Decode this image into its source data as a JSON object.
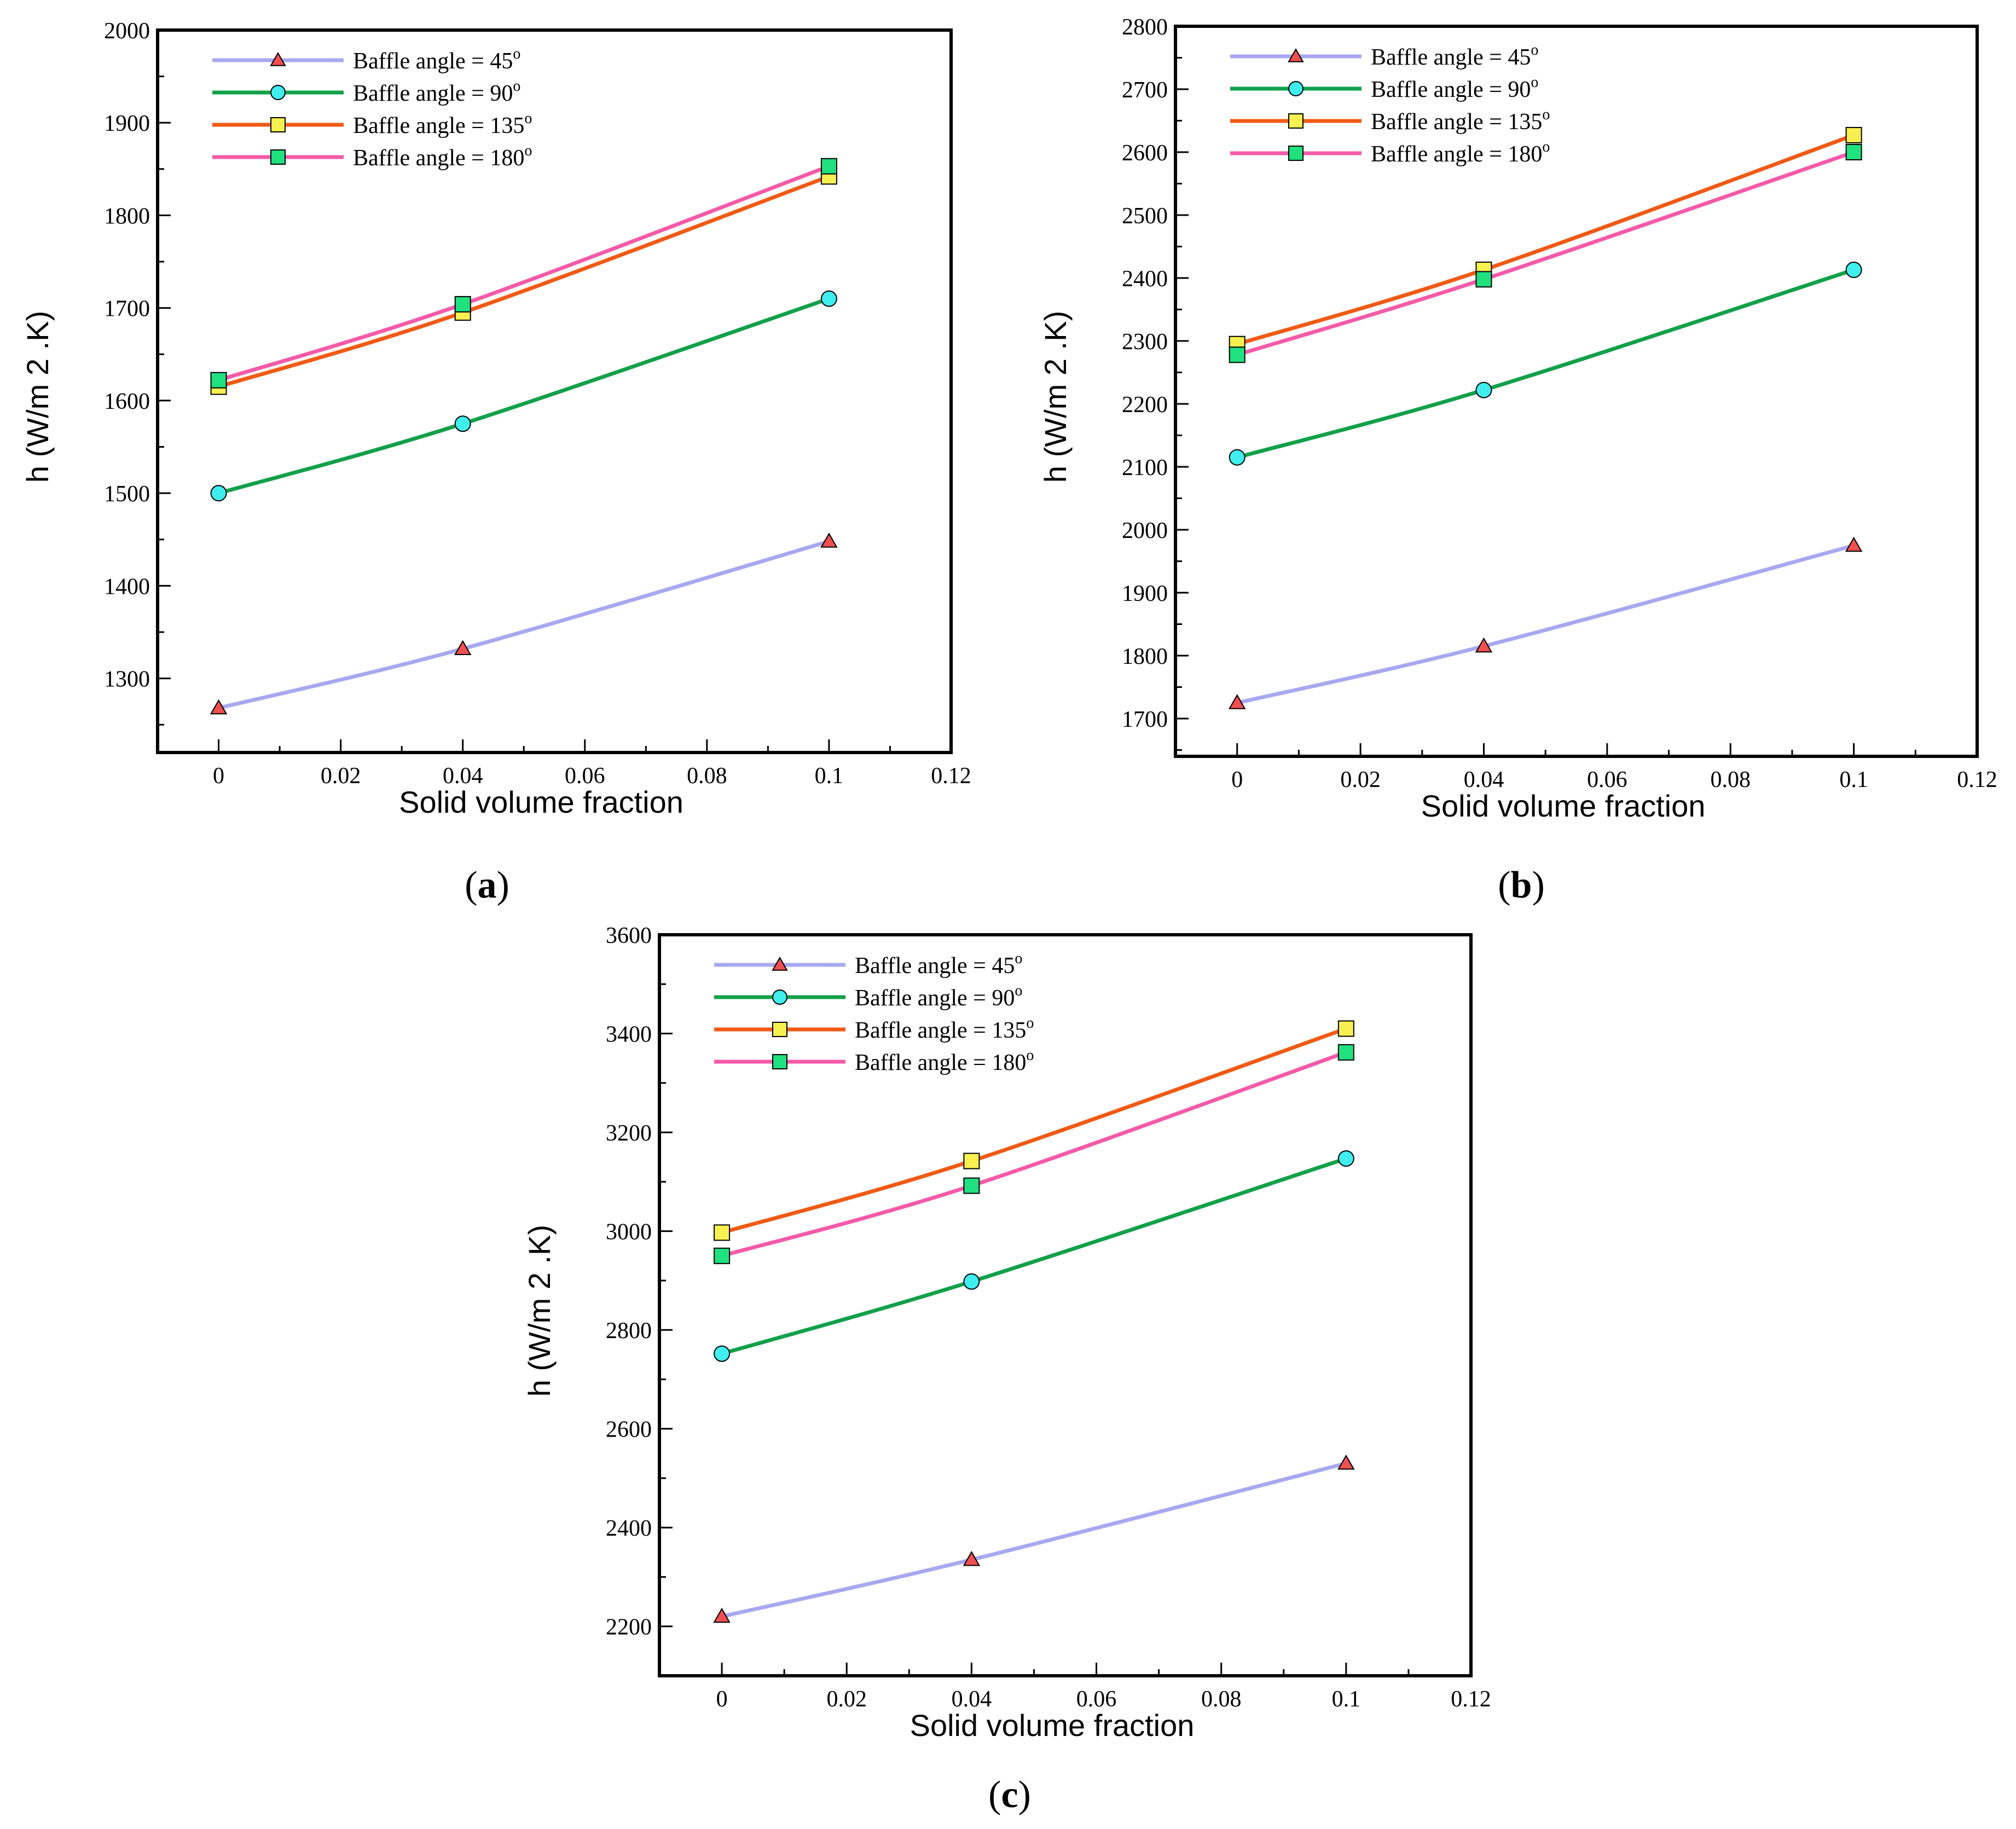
{
  "chart_data": [
    {
      "type": "line",
      "panel": "a",
      "xlabel": "Solid volume fraction",
      "ylabel": "h (W/m 2 .K)",
      "xlim": [
        -0.01,
        0.12
      ],
      "ylim": [
        1220,
        2000
      ],
      "x_ticks": [
        0,
        0.02,
        0.04,
        0.06,
        0.08,
        0.1,
        0.12
      ],
      "x_tick_labels": [
        "0",
        "0.02",
        "0.04",
        "0.06",
        "0.08",
        "0.1",
        "0.12"
      ],
      "y_ticks": [
        1300,
        1400,
        1500,
        1600,
        1700,
        1800,
        1900,
        2000
      ],
      "y_tick_labels": [
        "1300",
        "1400",
        "1500",
        "1600",
        "1700",
        "1800",
        "1900",
        "2000"
      ],
      "legend_position": "top-left",
      "series": [
        {
          "name": "Baffle angle = 45",
          "x": [
            0,
            0.04,
            0.1
          ],
          "values": [
            1268,
            1332,
            1448
          ]
        },
        {
          "name": "Baffle angle = 90",
          "x": [
            0,
            0.04,
            0.1
          ],
          "values": [
            1500,
            1575,
            1710
          ]
        },
        {
          "name": "Baffle angle = 135",
          "x": [
            0,
            0.04,
            0.1
          ],
          "values": [
            1615,
            1695,
            1842
          ]
        },
        {
          "name": "Baffle angle = 180",
          "x": [
            0,
            0.04,
            0.1
          ],
          "values": [
            1622,
            1704,
            1853
          ]
        }
      ]
    },
    {
      "type": "line",
      "panel": "b",
      "xlabel": "Solid volume fraction",
      "ylabel": "h (W/m 2 .K)",
      "xlim": [
        -0.01,
        0.12
      ],
      "ylim": [
        1640,
        2800
      ],
      "x_ticks": [
        0,
        0.02,
        0.04,
        0.06,
        0.08,
        0.1,
        0.12
      ],
      "x_tick_labels": [
        "0",
        "0.02",
        "0.04",
        "0.06",
        "0.08",
        "0.1",
        "0.12"
      ],
      "y_ticks": [
        1700,
        1800,
        1900,
        2000,
        2100,
        2200,
        2300,
        2400,
        2500,
        2600,
        2700,
        2800
      ],
      "y_tick_labels": [
        "1700",
        "1800",
        "1900",
        "2000",
        "2100",
        "2200",
        "2300",
        "2400",
        "2500",
        "2600",
        "2700",
        "2800"
      ],
      "legend_position": "top-left",
      "series": [
        {
          "name": "Baffle angle = 45",
          "x": [
            0,
            0.04,
            0.1
          ],
          "values": [
            1725,
            1815,
            1975
          ]
        },
        {
          "name": "Baffle angle = 90",
          "x": [
            0,
            0.04,
            0.1
          ],
          "values": [
            2115,
            2222,
            2413
          ]
        },
        {
          "name": "Baffle angle = 135",
          "x": [
            0,
            0.04,
            0.1
          ],
          "values": [
            2295,
            2413,
            2627
          ]
        },
        {
          "name": "Baffle angle = 180",
          "x": [
            0,
            0.04,
            0.1
          ],
          "values": [
            2278,
            2398,
            2600
          ]
        }
      ]
    },
    {
      "type": "line",
      "panel": "c",
      "xlabel": "Solid volume fraction",
      "ylabel": "h (W/m 2 .K)",
      "xlim": [
        -0.01,
        0.12
      ],
      "ylim": [
        2100,
        3600
      ],
      "x_ticks": [
        0,
        0.02,
        0.04,
        0.06,
        0.08,
        0.1,
        0.12
      ],
      "x_tick_labels": [
        "0",
        "0.02",
        "0.04",
        "0.06",
        "0.08",
        "0.1",
        "0.12"
      ],
      "y_ticks": [
        2200,
        2400,
        2600,
        2800,
        3000,
        3200,
        3400,
        3600
      ],
      "y_tick_labels": [
        "2200",
        "2400",
        "2600",
        "2800",
        "3000",
        "3200",
        "3400",
        "3600"
      ],
      "legend_position": "top-left",
      "series": [
        {
          "name": "Baffle angle = 45",
          "x": [
            0,
            0.04,
            0.1
          ],
          "values": [
            2220,
            2335,
            2530
          ]
        },
        {
          "name": "Baffle angle = 90",
          "x": [
            0,
            0.04,
            0.1
          ],
          "values": [
            2752,
            2898,
            3147
          ]
        },
        {
          "name": "Baffle angle = 135",
          "x": [
            0,
            0.04,
            0.1
          ],
          "values": [
            2997,
            3142,
            3410
          ]
        },
        {
          "name": "Baffle angle = 180",
          "x": [
            0,
            0.04,
            0.1
          ],
          "values": [
            2950,
            3092,
            3362
          ]
        }
      ]
    }
  ],
  "series_style": [
    {
      "color": "#a8a8f0",
      "marker": "triangle",
      "marker_fill": "#f05050",
      "degree_mark": "o"
    },
    {
      "color": "#12a04a",
      "marker": "circle",
      "marker_fill": "#40eeee",
      "degree_mark": "o"
    },
    {
      "color": "#f05a14",
      "marker": "square",
      "marker_fill": "#f8f050",
      "degree_mark": "o"
    },
    {
      "color": "#f45aa8",
      "marker": "square",
      "marker_fill": "#20e080",
      "degree_mark": "o"
    }
  ],
  "panel_labels": [
    {
      "open": "(",
      "letter": "a",
      "close": ")"
    },
    {
      "open": "(",
      "letter": "b",
      "close": ")"
    },
    {
      "open": "(",
      "letter": "c",
      "close": ")"
    }
  ]
}
